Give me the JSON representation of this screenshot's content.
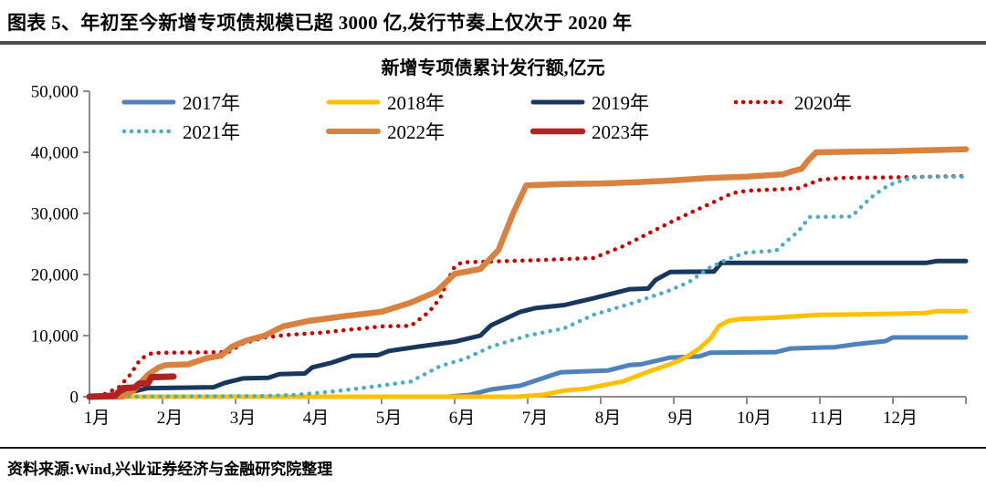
{
  "header": {
    "title": "图表 5、年初至今新增专项债规模已超 3000 亿,发行节奏上仅次于 2020 年"
  },
  "footer": {
    "source": "资料来源:Wind,兴业证券经济与金融研究院整理"
  },
  "chart_data": {
    "type": "line",
    "title": "新增专项债累计发行额,亿元",
    "unit": "亿元",
    "legend_position": "top",
    "grid": false,
    "axis_color": "#8c8c8c",
    "x_axis": {
      "tick_labels": [
        "1月",
        "2月",
        "3月",
        "4月",
        "5月",
        "6月",
        "7月",
        "8月",
        "9月",
        "10月",
        "11月",
        "12月"
      ],
      "range_months": [
        0,
        12
      ]
    },
    "y_axis": {
      "range": [
        0,
        50000
      ],
      "ticks": [
        0,
        10000,
        20000,
        30000,
        40000,
        50000
      ],
      "tick_labels": [
        "0",
        "10,000",
        "20,000",
        "30,000",
        "40,000",
        "50,000"
      ]
    },
    "series": [
      {
        "name": "2017年",
        "color": "#4F81BD",
        "style": "solid",
        "width": 5,
        "points": [
          [
            0,
            0
          ],
          [
            4.9,
            0
          ],
          [
            5.2,
            300
          ],
          [
            5.5,
            1200
          ],
          [
            5.9,
            1800
          ],
          [
            6.2,
            3000
          ],
          [
            6.45,
            4000
          ],
          [
            7.1,
            4300
          ],
          [
            7.4,
            5200
          ],
          [
            7.55,
            5300
          ],
          [
            7.95,
            6400
          ],
          [
            8.35,
            6600
          ],
          [
            8.5,
            7200
          ],
          [
            9.4,
            7300
          ],
          [
            9.6,
            7900
          ],
          [
            10.2,
            8100
          ],
          [
            10.5,
            8600
          ],
          [
            10.9,
            9100
          ],
          [
            11.0,
            9700
          ],
          [
            12,
            9700
          ]
        ]
      },
      {
        "name": "2018年",
        "color": "#FFC000",
        "style": "solid",
        "width": 5,
        "points": [
          [
            0,
            0
          ],
          [
            5.85,
            0
          ],
          [
            6.2,
            300
          ],
          [
            6.5,
            1000
          ],
          [
            6.8,
            1300
          ],
          [
            7.0,
            1800
          ],
          [
            7.3,
            2500
          ],
          [
            7.5,
            3400
          ],
          [
            7.7,
            4300
          ],
          [
            7.9,
            5100
          ],
          [
            8.05,
            5800
          ],
          [
            8.2,
            6700
          ],
          [
            8.35,
            7900
          ],
          [
            8.5,
            9500
          ],
          [
            8.62,
            11600
          ],
          [
            8.75,
            12400
          ],
          [
            8.9,
            12700
          ],
          [
            9.3,
            12900
          ],
          [
            10.0,
            13400
          ],
          [
            10.6,
            13500
          ],
          [
            11.1,
            13600
          ],
          [
            11.45,
            13700
          ],
          [
            11.6,
            14000
          ],
          [
            12,
            14000
          ]
        ]
      },
      {
        "name": "2019年",
        "color": "#17375E",
        "style": "solid",
        "width": 5,
        "points": [
          [
            0,
            0
          ],
          [
            0.45,
            450
          ],
          [
            0.8,
            1400
          ],
          [
            1.7,
            1550
          ],
          [
            1.85,
            2250
          ],
          [
            2.1,
            3000
          ],
          [
            2.45,
            3100
          ],
          [
            2.6,
            3700
          ],
          [
            2.95,
            3800
          ],
          [
            3.05,
            4800
          ],
          [
            3.3,
            5500
          ],
          [
            3.6,
            6700
          ],
          [
            3.95,
            6800
          ],
          [
            4.1,
            7500
          ],
          [
            4.5,
            8200
          ],
          [
            5.0,
            9000
          ],
          [
            5.35,
            10000
          ],
          [
            5.5,
            11700
          ],
          [
            5.9,
            13900
          ],
          [
            6.1,
            14500
          ],
          [
            6.5,
            15000
          ],
          [
            6.9,
            16100
          ],
          [
            7.4,
            17600
          ],
          [
            7.65,
            17700
          ],
          [
            7.75,
            19100
          ],
          [
            7.95,
            20400
          ],
          [
            8.55,
            20500
          ],
          [
            8.65,
            21900
          ],
          [
            11.45,
            21900
          ],
          [
            11.6,
            22200
          ],
          [
            12,
            22200
          ]
        ]
      },
      {
        "name": "2020年",
        "color": "#CC0000",
        "style": "dotted",
        "width": 4.5,
        "points": [
          [
            0,
            0
          ],
          [
            0.2,
            400
          ],
          [
            0.4,
            1500
          ],
          [
            0.55,
            3500
          ],
          [
            0.7,
            6200
          ],
          [
            0.85,
            7100
          ],
          [
            1.0,
            7200
          ],
          [
            1.9,
            7300
          ],
          [
            2.1,
            8700
          ],
          [
            2.4,
            9700
          ],
          [
            2.7,
            10100
          ],
          [
            3.2,
            10500
          ],
          [
            3.5,
            10900
          ],
          [
            4.0,
            11500
          ],
          [
            4.4,
            11600
          ],
          [
            4.65,
            13900
          ],
          [
            4.8,
            16100
          ],
          [
            4.92,
            19400
          ],
          [
            5.0,
            21300
          ],
          [
            5.1,
            22000
          ],
          [
            6.0,
            22300
          ],
          [
            6.9,
            22700
          ],
          [
            7.3,
            24600
          ],
          [
            7.6,
            26400
          ],
          [
            8.1,
            29400
          ],
          [
            8.5,
            31600
          ],
          [
            8.8,
            33300
          ],
          [
            9.0,
            33700
          ],
          [
            9.7,
            34100
          ],
          [
            10.0,
            35500
          ],
          [
            10.3,
            35800
          ],
          [
            11.0,
            35900
          ],
          [
            11.9,
            36100
          ],
          [
            12,
            36100
          ]
        ]
      },
      {
        "name": "2021年",
        "color": "#4BACC6",
        "style": "dotted",
        "width": 4.5,
        "points": [
          [
            0,
            0
          ],
          [
            2.3,
            100
          ],
          [
            2.8,
            300
          ],
          [
            3.3,
            800
          ],
          [
            3.8,
            1500
          ],
          [
            4.4,
            2500
          ],
          [
            4.8,
            5000
          ],
          [
            5.15,
            6250
          ],
          [
            5.5,
            8200
          ],
          [
            6.0,
            10000
          ],
          [
            6.5,
            11200
          ],
          [
            6.9,
            13400
          ],
          [
            7.4,
            15200
          ],
          [
            7.9,
            17200
          ],
          [
            8.2,
            18700
          ],
          [
            8.5,
            21200
          ],
          [
            8.8,
            22800
          ],
          [
            9.0,
            23600
          ],
          [
            9.4,
            23900
          ],
          [
            9.55,
            25500
          ],
          [
            9.7,
            27000
          ],
          [
            9.86,
            29400
          ],
          [
            10.44,
            29500
          ],
          [
            10.56,
            31000
          ],
          [
            10.74,
            33000
          ],
          [
            10.94,
            34600
          ],
          [
            11.15,
            35500
          ],
          [
            11.34,
            36000
          ],
          [
            12,
            36000
          ]
        ]
      },
      {
        "name": "2022年",
        "color": "#D9813E",
        "style": "solid",
        "width": 6.5,
        "points": [
          [
            0,
            0
          ],
          [
            0.45,
            0
          ],
          [
            0.6,
            1000
          ],
          [
            0.8,
            3600
          ],
          [
            0.95,
            4800
          ],
          [
            1.05,
            5200
          ],
          [
            1.35,
            5300
          ],
          [
            1.6,
            6300
          ],
          [
            1.8,
            6700
          ],
          [
            1.95,
            8200
          ],
          [
            2.15,
            9200
          ],
          [
            2.4,
            10000
          ],
          [
            2.65,
            11500
          ],
          [
            3.0,
            12400
          ],
          [
            3.5,
            13200
          ],
          [
            4.0,
            13900
          ],
          [
            4.4,
            15400
          ],
          [
            4.75,
            17200
          ],
          [
            5.0,
            20100
          ],
          [
            5.35,
            20900
          ],
          [
            5.6,
            24000
          ],
          [
            5.8,
            30000
          ],
          [
            5.98,
            34600
          ],
          [
            6.5,
            34800
          ],
          [
            7.0,
            34900
          ],
          [
            7.5,
            35100
          ],
          [
            8.0,
            35400
          ],
          [
            8.5,
            35800
          ],
          [
            9.0,
            36000
          ],
          [
            9.5,
            36400
          ],
          [
            9.65,
            37000
          ],
          [
            9.75,
            37300
          ],
          [
            9.85,
            38800
          ],
          [
            9.95,
            40000
          ],
          [
            10.5,
            40100
          ],
          [
            11.0,
            40200
          ],
          [
            12,
            40500
          ]
        ]
      },
      {
        "name": "2023年",
        "color": "#B22222",
        "style": "solid",
        "width": 7,
        "points": [
          [
            0,
            0
          ],
          [
            0.35,
            150
          ],
          [
            0.45,
            1400
          ],
          [
            0.62,
            1500
          ],
          [
            0.68,
            2150
          ],
          [
            0.8,
            2200
          ],
          [
            0.85,
            3200
          ],
          [
            1.15,
            3300
          ]
        ]
      }
    ]
  }
}
